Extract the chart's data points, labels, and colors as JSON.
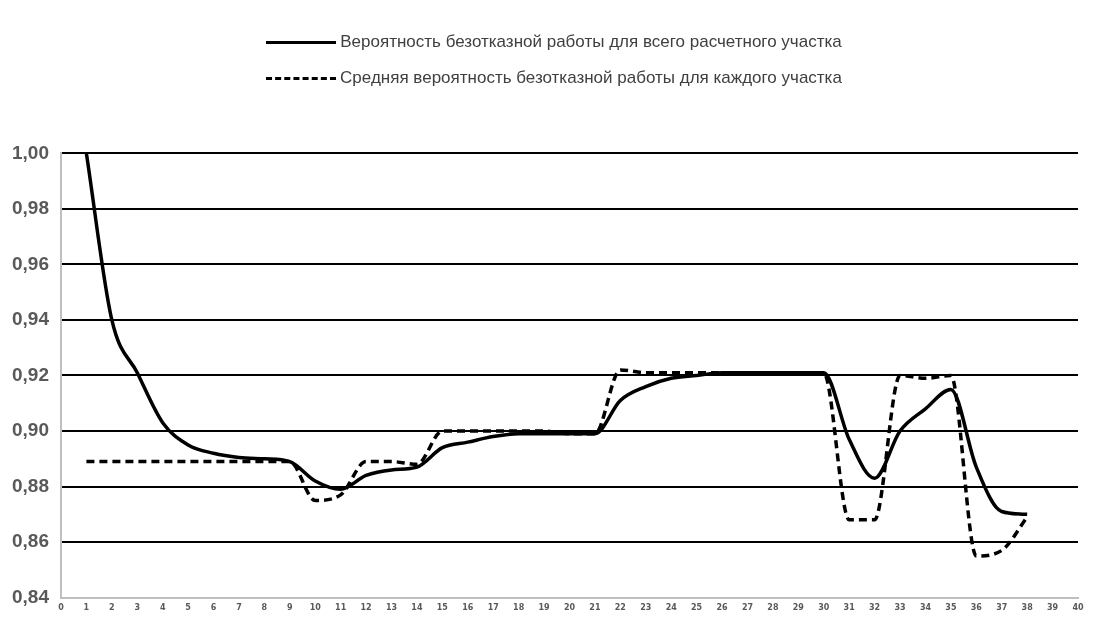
{
  "chart_data": {
    "type": "line",
    "x": [
      1,
      2,
      3,
      4,
      5,
      6,
      7,
      8,
      9,
      10,
      11,
      12,
      13,
      14,
      15,
      16,
      17,
      18,
      19,
      20,
      21,
      22,
      23,
      24,
      25,
      26,
      27,
      28,
      29,
      30,
      31,
      32,
      33,
      34,
      35,
      36,
      37,
      38
    ],
    "series": [
      {
        "name": "Вероятность безотказной работы для всего расчетного участка",
        "color": "#000000",
        "line_style": "solid",
        "values": [
          1.0,
          0.94,
          0.921,
          0.903,
          0.895,
          0.892,
          0.8905,
          0.89,
          0.889,
          0.882,
          0.879,
          0.884,
          0.886,
          0.887,
          0.894,
          0.896,
          0.898,
          0.899,
          0.899,
          0.899,
          0.899,
          0.911,
          0.916,
          0.919,
          0.92,
          0.921,
          0.921,
          0.921,
          0.921,
          0.921,
          0.897,
          0.883,
          0.9,
          0.908,
          0.915,
          0.887,
          0.871,
          0.87
        ]
      },
      {
        "name": "Средняя вероятность безотказной работы для каждого участка",
        "color": "#000000",
        "line_style": "dashed",
        "values": [
          0.889,
          0.889,
          0.889,
          0.889,
          0.889,
          0.889,
          0.889,
          0.889,
          0.889,
          0.875,
          0.877,
          0.889,
          0.889,
          0.888,
          0.9,
          0.9,
          0.9,
          0.9,
          0.9,
          0.899,
          0.899,
          0.922,
          0.921,
          0.921,
          0.921,
          0.921,
          0.921,
          0.921,
          0.921,
          0.921,
          0.868,
          0.868,
          0.92,
          0.919,
          0.92,
          0.855,
          0.857,
          0.869
        ]
      }
    ],
    "xlim": [
      0,
      40
    ],
    "xticks": [
      0,
      1,
      2,
      3,
      4,
      5,
      6,
      7,
      8,
      9,
      10,
      11,
      12,
      13,
      14,
      15,
      16,
      17,
      18,
      19,
      20,
      21,
      22,
      23,
      24,
      25,
      26,
      27,
      28,
      29,
      30,
      31,
      32,
      33,
      34,
      35,
      36,
      37,
      38,
      39,
      40
    ],
    "ylim": [
      0.84,
      1.0
    ],
    "yticks": [
      {
        "value": 0.84,
        "label": "0,84"
      },
      {
        "value": 0.86,
        "label": "0,86"
      },
      {
        "value": 0.88,
        "label": "0,88"
      },
      {
        "value": 0.9,
        "label": "0,90"
      },
      {
        "value": 0.92,
        "label": "0,92"
      },
      {
        "value": 0.94,
        "label": "0,94"
      },
      {
        "value": 0.96,
        "label": "0,96"
      },
      {
        "value": 0.98,
        "label": "0,98"
      },
      {
        "value": 1.0,
        "label": "1,00"
      }
    ],
    "grid": "y",
    "legend": "top",
    "marker": "none"
  }
}
